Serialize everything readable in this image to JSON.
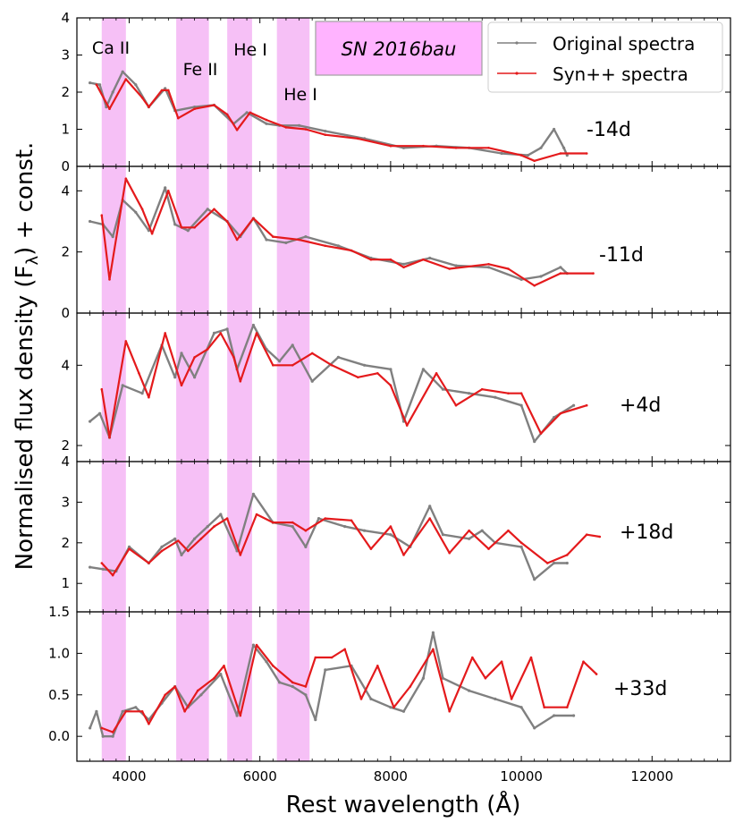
{
  "chart_data": {
    "type": "line",
    "title": "SN 2016bau",
    "xlabel": "Rest wavelength (Å)",
    "ylabel_parts": [
      "Normalised flux density (F",
      "λ",
      ") + const."
    ],
    "xlim": [
      3200,
      13200
    ],
    "x_ticks": [
      4000,
      6000,
      8000,
      10000,
      12000
    ],
    "legend": {
      "position": "top-right",
      "entries": [
        {
          "name": "Original spectra",
          "color": "#808080"
        },
        {
          "name": "Syn++ spectra",
          "color": "#e41a1c"
        }
      ]
    },
    "bands": [
      {
        "label": "Ca II",
        "x0": 3580,
        "x1": 3950
      },
      {
        "label": "Fe II",
        "x0": 4720,
        "x1": 5220
      },
      {
        "label": "He I",
        "x0": 5500,
        "x1": 5880
      },
      {
        "label": "He I",
        "x0": 6260,
        "x1": 6760
      }
    ],
    "band_color": "#ee82ee",
    "panels": [
      {
        "epoch": "-14d",
        "ylim": [
          0,
          4
        ],
        "y_ticks": [
          0,
          1,
          2,
          3,
          4
        ],
        "observed": [
          [
            3400,
            2.25
          ],
          [
            3550,
            2.2
          ],
          [
            3650,
            1.6
          ],
          [
            3750,
            2.0
          ],
          [
            3900,
            2.55
          ],
          [
            4100,
            2.2
          ],
          [
            4300,
            1.6
          ],
          [
            4550,
            2.1
          ],
          [
            4700,
            1.5
          ],
          [
            5000,
            1.6
          ],
          [
            5300,
            1.65
          ],
          [
            5600,
            1.15
          ],
          [
            5800,
            1.45
          ],
          [
            6100,
            1.15
          ],
          [
            6300,
            1.1
          ],
          [
            6600,
            1.1
          ],
          [
            7000,
            0.95
          ],
          [
            7600,
            0.75
          ],
          [
            8200,
            0.5
          ],
          [
            8700,
            0.55
          ],
          [
            9200,
            0.5
          ],
          [
            9700,
            0.35
          ],
          [
            10100,
            0.3
          ],
          [
            10300,
            0.5
          ],
          [
            10500,
            1.0
          ],
          [
            10650,
            0.5
          ],
          [
            10700,
            0.3
          ]
        ],
        "synthetic": [
          [
            3500,
            2.2
          ],
          [
            3700,
            1.55
          ],
          [
            3950,
            2.35
          ],
          [
            4200,
            1.85
          ],
          [
            4300,
            1.6
          ],
          [
            4500,
            2.05
          ],
          [
            4600,
            2.05
          ],
          [
            4750,
            1.3
          ],
          [
            5000,
            1.55
          ],
          [
            5300,
            1.65
          ],
          [
            5500,
            1.4
          ],
          [
            5650,
            0.98
          ],
          [
            5850,
            1.45
          ],
          [
            6100,
            1.25
          ],
          [
            6400,
            1.05
          ],
          [
            6700,
            1.0
          ],
          [
            7000,
            0.85
          ],
          [
            7500,
            0.75
          ],
          [
            8000,
            0.55
          ],
          [
            8500,
            0.55
          ],
          [
            9000,
            0.5
          ],
          [
            9500,
            0.5
          ],
          [
            10000,
            0.3
          ],
          [
            10200,
            0.15
          ],
          [
            10600,
            0.35
          ],
          [
            11000,
            0.35
          ]
        ]
      },
      {
        "epoch": "-11d",
        "ylim": [
          0,
          4.8
        ],
        "y_ticks": [
          0,
          2,
          4
        ],
        "observed": [
          [
            3400,
            3.0
          ],
          [
            3600,
            2.9
          ],
          [
            3750,
            2.5
          ],
          [
            3900,
            3.7
          ],
          [
            4100,
            3.3
          ],
          [
            4300,
            2.7
          ],
          [
            4550,
            4.1
          ],
          [
            4700,
            2.9
          ],
          [
            4900,
            2.7
          ],
          [
            5200,
            3.4
          ],
          [
            5500,
            3.0
          ],
          [
            5700,
            2.5
          ],
          [
            5900,
            3.1
          ],
          [
            6100,
            2.4
          ],
          [
            6400,
            2.3
          ],
          [
            6700,
            2.5
          ],
          [
            7200,
            2.2
          ],
          [
            7700,
            1.8
          ],
          [
            8200,
            1.6
          ],
          [
            8600,
            1.8
          ],
          [
            9000,
            1.55
          ],
          [
            9500,
            1.5
          ],
          [
            10000,
            1.1
          ],
          [
            10300,
            1.2
          ],
          [
            10600,
            1.5
          ],
          [
            10700,
            1.3
          ]
        ],
        "synthetic": [
          [
            3580,
            3.2
          ],
          [
            3700,
            1.1
          ],
          [
            3950,
            4.4
          ],
          [
            4200,
            3.4
          ],
          [
            4350,
            2.6
          ],
          [
            4600,
            4.0
          ],
          [
            4800,
            2.8
          ],
          [
            5000,
            2.8
          ],
          [
            5300,
            3.4
          ],
          [
            5500,
            3.0
          ],
          [
            5650,
            2.4
          ],
          [
            5900,
            3.1
          ],
          [
            6200,
            2.5
          ],
          [
            6600,
            2.4
          ],
          [
            7000,
            2.2
          ],
          [
            7400,
            2.05
          ],
          [
            7700,
            1.75
          ],
          [
            8000,
            1.75
          ],
          [
            8200,
            1.5
          ],
          [
            8500,
            1.75
          ],
          [
            8900,
            1.45
          ],
          [
            9500,
            1.6
          ],
          [
            9800,
            1.45
          ],
          [
            10200,
            0.9
          ],
          [
            10600,
            1.3
          ],
          [
            11100,
            1.3
          ]
        ]
      },
      {
        "epoch": "+4d",
        "ylim": [
          1.6,
          5.3
        ],
        "y_ticks": [
          2,
          4
        ],
        "observed": [
          [
            3400,
            2.6
          ],
          [
            3550,
            2.8
          ],
          [
            3700,
            2.2
          ],
          [
            3900,
            3.5
          ],
          [
            4200,
            3.3
          ],
          [
            4500,
            4.5
          ],
          [
            4700,
            3.7
          ],
          [
            4800,
            4.3
          ],
          [
            5000,
            3.7
          ],
          [
            5300,
            4.8
          ],
          [
            5500,
            4.9
          ],
          [
            5650,
            3.9
          ],
          [
            5900,
            5.0
          ],
          [
            6100,
            4.4
          ],
          [
            6300,
            4.1
          ],
          [
            6500,
            4.5
          ],
          [
            6800,
            3.6
          ],
          [
            7200,
            4.2
          ],
          [
            7600,
            4.0
          ],
          [
            8000,
            3.9
          ],
          [
            8200,
            2.6
          ],
          [
            8500,
            3.9
          ],
          [
            8800,
            3.4
          ],
          [
            9200,
            3.3
          ],
          [
            9600,
            3.2
          ],
          [
            10000,
            3.0
          ],
          [
            10200,
            2.1
          ],
          [
            10500,
            2.7
          ],
          [
            10800,
            3.0
          ]
        ],
        "synthetic": [
          [
            3580,
            3.4
          ],
          [
            3700,
            2.2
          ],
          [
            3950,
            4.6
          ],
          [
            4150,
            3.8
          ],
          [
            4300,
            3.2
          ],
          [
            4550,
            4.8
          ],
          [
            4800,
            3.5
          ],
          [
            5000,
            4.2
          ],
          [
            5200,
            4.4
          ],
          [
            5400,
            4.8
          ],
          [
            5600,
            4.2
          ],
          [
            5700,
            3.6
          ],
          [
            5950,
            4.8
          ],
          [
            6200,
            4.0
          ],
          [
            6500,
            4.0
          ],
          [
            6800,
            4.3
          ],
          [
            7100,
            4.0
          ],
          [
            7500,
            3.7
          ],
          [
            7800,
            3.8
          ],
          [
            8000,
            3.5
          ],
          [
            8250,
            2.5
          ],
          [
            8700,
            3.8
          ],
          [
            9000,
            3.0
          ],
          [
            9400,
            3.4
          ],
          [
            9800,
            3.3
          ],
          [
            10000,
            3.3
          ],
          [
            10300,
            2.3
          ],
          [
            10600,
            2.8
          ],
          [
            11000,
            3.0
          ]
        ]
      },
      {
        "epoch": "+18d",
        "ylim": [
          0.3,
          4
        ],
        "y_ticks": [
          1,
          2,
          3,
          4
        ],
        "observed": [
          [
            3400,
            1.4
          ],
          [
            3600,
            1.35
          ],
          [
            3800,
            1.3
          ],
          [
            4000,
            1.9
          ],
          [
            4300,
            1.5
          ],
          [
            4500,
            1.9
          ],
          [
            4700,
            2.1
          ],
          [
            4800,
            1.7
          ],
          [
            5000,
            2.1
          ],
          [
            5200,
            2.4
          ],
          [
            5400,
            2.7
          ],
          [
            5650,
            1.8
          ],
          [
            5900,
            3.2
          ],
          [
            6200,
            2.5
          ],
          [
            6500,
            2.4
          ],
          [
            6700,
            1.9
          ],
          [
            6900,
            2.6
          ],
          [
            7300,
            2.4
          ],
          [
            7600,
            2.3
          ],
          [
            8000,
            2.2
          ],
          [
            8300,
            1.9
          ],
          [
            8600,
            2.9
          ],
          [
            8800,
            2.2
          ],
          [
            9200,
            2.1
          ],
          [
            9400,
            2.3
          ],
          [
            9600,
            2.0
          ],
          [
            10000,
            1.9
          ],
          [
            10200,
            1.1
          ],
          [
            10500,
            1.5
          ],
          [
            10700,
            1.5
          ]
        ],
        "synthetic": [
          [
            3580,
            1.5
          ],
          [
            3750,
            1.2
          ],
          [
            4000,
            1.85
          ],
          [
            4300,
            1.5
          ],
          [
            4500,
            1.8
          ],
          [
            4750,
            2.05
          ],
          [
            4900,
            1.8
          ],
          [
            5100,
            2.1
          ],
          [
            5300,
            2.4
          ],
          [
            5500,
            2.6
          ],
          [
            5700,
            1.7
          ],
          [
            5950,
            2.7
          ],
          [
            6200,
            2.5
          ],
          [
            6500,
            2.5
          ],
          [
            6700,
            2.3
          ],
          [
            7000,
            2.6
          ],
          [
            7400,
            2.55
          ],
          [
            7700,
            1.85
          ],
          [
            8000,
            2.4
          ],
          [
            8200,
            1.7
          ],
          [
            8600,
            2.6
          ],
          [
            8900,
            1.75
          ],
          [
            9200,
            2.3
          ],
          [
            9500,
            1.85
          ],
          [
            9800,
            2.3
          ],
          [
            10000,
            2.0
          ],
          [
            10400,
            1.5
          ],
          [
            10700,
            1.7
          ],
          [
            11000,
            2.2
          ],
          [
            11200,
            2.15
          ]
        ]
      },
      {
        "epoch": "+33d",
        "ylim": [
          -0.3,
          1.5
        ],
        "y_ticks": [
          0.0,
          0.5,
          1.0,
          1.5
        ],
        "observed": [
          [
            3400,
            0.1
          ],
          [
            3500,
            0.3
          ],
          [
            3600,
            0.0
          ],
          [
            3750,
            0.0
          ],
          [
            3900,
            0.3
          ],
          [
            4100,
            0.35
          ],
          [
            4300,
            0.2
          ],
          [
            4500,
            0.4
          ],
          [
            4700,
            0.6
          ],
          [
            4900,
            0.35
          ],
          [
            5100,
            0.5
          ],
          [
            5400,
            0.75
          ],
          [
            5650,
            0.25
          ],
          [
            5900,
            1.1
          ],
          [
            6100,
            0.9
          ],
          [
            6300,
            0.65
          ],
          [
            6500,
            0.6
          ],
          [
            6700,
            0.5
          ],
          [
            6850,
            0.2
          ],
          [
            7000,
            0.8
          ],
          [
            7400,
            0.85
          ],
          [
            7700,
            0.45
          ],
          [
            8000,
            0.35
          ],
          [
            8200,
            0.3
          ],
          [
            8500,
            0.7
          ],
          [
            8650,
            1.25
          ],
          [
            8800,
            0.7
          ],
          [
            9200,
            0.55
          ],
          [
            9600,
            0.45
          ],
          [
            10000,
            0.35
          ],
          [
            10200,
            0.1
          ],
          [
            10500,
            0.25
          ],
          [
            10800,
            0.25
          ]
        ],
        "synthetic": [
          [
            3580,
            0.1
          ],
          [
            3750,
            0.05
          ],
          [
            3950,
            0.3
          ],
          [
            4200,
            0.3
          ],
          [
            4300,
            0.15
          ],
          [
            4550,
            0.5
          ],
          [
            4700,
            0.6
          ],
          [
            4850,
            0.3
          ],
          [
            5050,
            0.55
          ],
          [
            5300,
            0.7
          ],
          [
            5450,
            0.85
          ],
          [
            5700,
            0.25
          ],
          [
            5950,
            1.1
          ],
          [
            6200,
            0.85
          ],
          [
            6500,
            0.65
          ],
          [
            6700,
            0.6
          ],
          [
            6850,
            0.95
          ],
          [
            7100,
            0.95
          ],
          [
            7300,
            1.05
          ],
          [
            7550,
            0.45
          ],
          [
            7800,
            0.85
          ],
          [
            8050,
            0.35
          ],
          [
            8300,
            0.6
          ],
          [
            8650,
            1.05
          ],
          [
            8900,
            0.3
          ],
          [
            9250,
            0.95
          ],
          [
            9450,
            0.7
          ],
          [
            9700,
            0.9
          ],
          [
            9850,
            0.45
          ],
          [
            10150,
            0.95
          ],
          [
            10350,
            0.35
          ],
          [
            10700,
            0.35
          ],
          [
            10950,
            0.9
          ],
          [
            11150,
            0.75
          ]
        ]
      }
    ]
  }
}
